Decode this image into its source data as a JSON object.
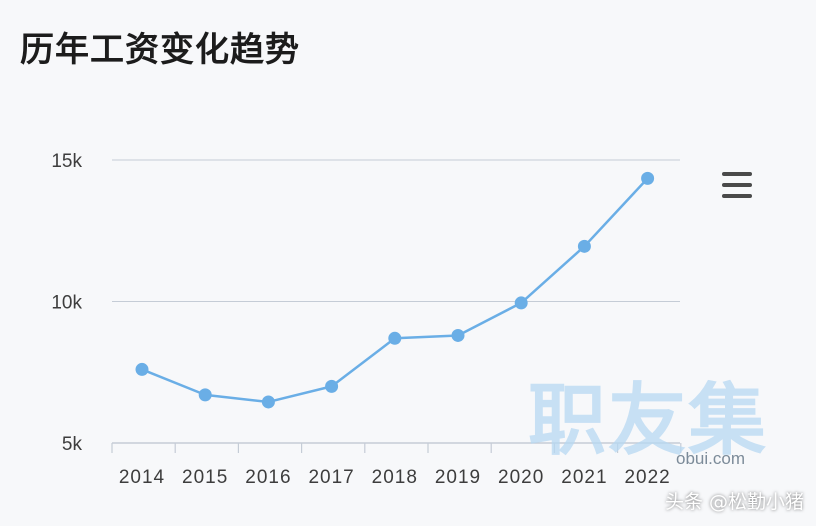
{
  "title": "历年工资变化趋势",
  "watermark": "职友集",
  "domain_text": "obui.com",
  "author": "头条 @松勤小猪",
  "menu_icon": "hamburger-menu-icon",
  "colors": {
    "line": "#6aaee6",
    "point": "#6aaee6",
    "grid": "#c5ccd6",
    "axis": "#c5ccd6",
    "tick_text": "#3d3d3d"
  },
  "chart_data": {
    "type": "line",
    "title": "历年工资变化趋势",
    "x": [
      "2014",
      "2015",
      "2016",
      "2017",
      "2018",
      "2019",
      "2020",
      "2021",
      "2022"
    ],
    "series": [
      {
        "values": [
          7600,
          6700,
          6450,
          7000,
          8700,
          8800,
          9950,
          11950,
          14350
        ]
      }
    ],
    "ylim": [
      5000,
      15000
    ],
    "yticks": [
      5000,
      10000,
      15000
    ],
    "ytick_labels": [
      "5k",
      "10k",
      "15k"
    ],
    "xlabel": "",
    "ylabel": "",
    "grid": true,
    "legend": "none"
  }
}
